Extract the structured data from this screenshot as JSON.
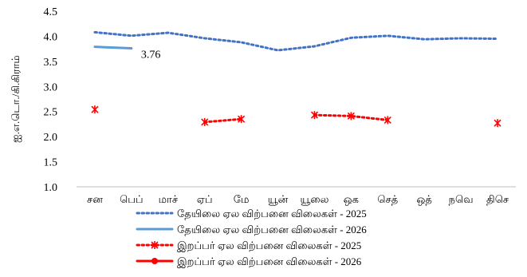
{
  "chart_data": {
    "type": "line",
    "title": "",
    "ylabel": "ஐ.எ.டொ./கி.கிராம்",
    "ylim": [
      1.0,
      4.5
    ],
    "yticks": [
      "1.0",
      "1.5",
      "2.0",
      "2.5",
      "3.0",
      "3.5",
      "4.0",
      "4.5"
    ],
    "categories": [
      "சன",
      "பெப்",
      "மாச்",
      "ஏப்",
      "மே",
      "யூன்",
      "யூலை",
      "ஒக",
      "செத்",
      "ஒத்",
      "நவெ",
      "திசெ"
    ],
    "grid": false,
    "legend_position": "bottom",
    "series": [
      {
        "name": "தேயிலை ஏல விற்பனை விலைகள்  -  2025",
        "color": "#4472C4",
        "style": "dotted",
        "marker": "none",
        "values": [
          4.08,
          4.01,
          4.07,
          3.96,
          3.88,
          3.72,
          3.8,
          3.97,
          4.01,
          3.94,
          3.96,
          3.95
        ]
      },
      {
        "name": "தேயிலை ஏல விற்பனை விலைகள்  -  2026",
        "color": "#5B9BD5",
        "style": "solid",
        "marker": "none",
        "values": [
          3.79,
          3.76,
          null,
          null,
          null,
          null,
          null,
          null,
          null,
          null,
          null,
          null
        ],
        "data_labels": [
          null,
          "3.76",
          null,
          null,
          null,
          null,
          null,
          null,
          null,
          null,
          null,
          null
        ]
      },
      {
        "name": "இறப்பர் ஏல விற்பனை விலைகள்  -  2025",
        "color": "#FF0000",
        "style": "dotted",
        "marker": "star",
        "values": [
          2.54,
          null,
          null,
          2.29,
          2.35,
          null,
          2.43,
          2.41,
          2.33,
          null,
          null,
          2.27
        ]
      },
      {
        "name": "இறப்பர் ஏல விற்பனை விலைகள்  -  2026",
        "color": "#FF0000",
        "style": "solid",
        "marker": "circle",
        "values": [
          null,
          null,
          null,
          null,
          null,
          null,
          null,
          null,
          null,
          null,
          null,
          null
        ]
      }
    ]
  }
}
